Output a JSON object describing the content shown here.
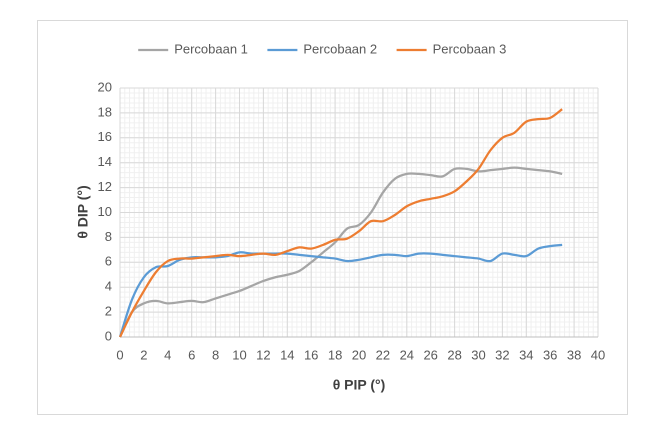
{
  "chart_data": {
    "type": "line",
    "x": [
      0,
      1,
      2,
      3,
      4,
      5,
      6,
      7,
      8,
      9,
      10,
      11,
      12,
      13,
      14,
      15,
      16,
      17,
      18,
      19,
      20,
      21,
      22,
      23,
      24,
      25,
      26,
      27,
      28,
      29,
      30,
      31,
      32,
      33,
      34,
      35,
      36,
      37
    ],
    "series": [
      {
        "name": "Percobaan 1",
        "color": "#a5a5a5",
        "values": [
          0,
          2,
          2.7,
          2.9,
          2.7,
          2.8,
          2.9,
          2.8,
          3.1,
          3.4,
          3.7,
          4.1,
          4.5,
          4.8,
          5.0,
          5.3,
          6.0,
          6.8,
          7.6,
          8.7,
          9.0,
          10,
          11.6,
          12.7,
          13.1,
          13.1,
          13.0,
          12.9,
          13.5,
          13.5,
          13.3,
          13.4,
          13.5,
          13.6,
          13.5,
          13.4,
          13.3,
          13.1
        ]
      },
      {
        "name": "Percobaan 2",
        "color": "#5b9bd5",
        "values": [
          0,
          3,
          4.8,
          5.6,
          5.7,
          6.2,
          6.4,
          6.4,
          6.4,
          6.5,
          6.8,
          6.7,
          6.7,
          6.7,
          6.7,
          6.6,
          6.5,
          6.4,
          6.3,
          6.1,
          6.2,
          6.4,
          6.6,
          6.6,
          6.5,
          6.7,
          6.7,
          6.6,
          6.5,
          6.4,
          6.3,
          6.1,
          6.7,
          6.6,
          6.5,
          7.1,
          7.3,
          7.4
        ]
      },
      {
        "name": "Percobaan 3",
        "color": "#ed7d31",
        "values": [
          0,
          2,
          3.7,
          5.2,
          6.1,
          6.3,
          6.3,
          6.4,
          6.5,
          6.6,
          6.5,
          6.6,
          6.7,
          6.6,
          6.9,
          7.2,
          7.1,
          7.4,
          7.8,
          7.9,
          8.5,
          9.3,
          9.3,
          9.8,
          10.5,
          10.9,
          11.1,
          11.3,
          11.7,
          12.5,
          13.5,
          15.0,
          16.0,
          16.4,
          17.3,
          17.5,
          17.6,
          18.3
        ]
      }
    ],
    "x_label": "θ PIP (°)",
    "y_label": "θ DIP (°)",
    "xlim": [
      0,
      40
    ],
    "xticks": [
      0,
      2,
      4,
      6,
      8,
      10,
      12,
      14,
      16,
      18,
      20,
      22,
      24,
      26,
      28,
      30,
      32,
      34,
      36,
      38,
      40
    ],
    "ylim": [
      0,
      20
    ],
    "yticks": [
      0,
      2,
      4,
      6,
      8,
      10,
      12,
      14,
      16,
      18,
      20
    ],
    "grid": true,
    "minor_grid": true,
    "legend": "top",
    "smooth": true
  }
}
